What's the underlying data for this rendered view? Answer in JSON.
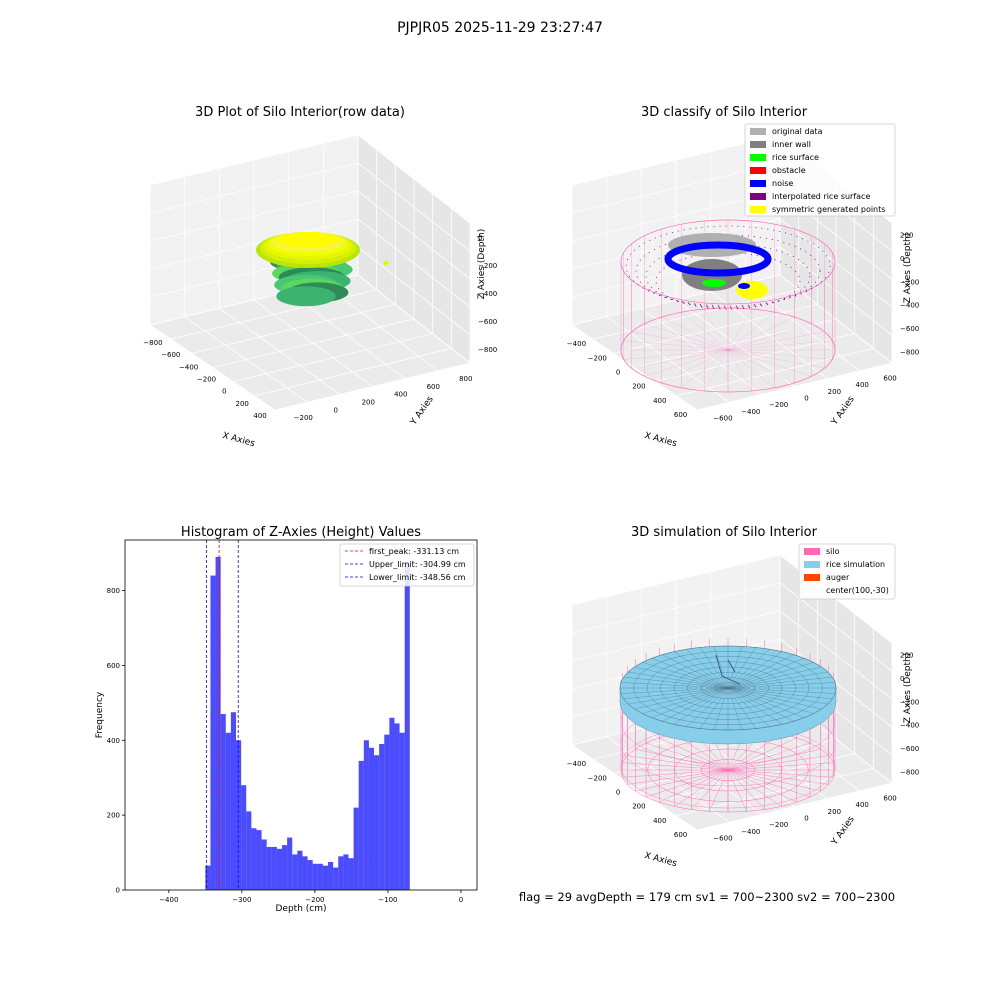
{
  "suptitle": "PJPJR05 2025-11-29 23:27:47",
  "footer": "flag = 29  avgDepth = 179 cm  sv1 = 700~2300  sv2 = 700~2300",
  "colors": {
    "silo": "#ff69b4",
    "rice_simulation": "#87ceeb",
    "auger": "#ff4500",
    "histogram": "#0000ff",
    "first_peak": "#ff0000",
    "limits": "#0000ff"
  },
  "chart_data": [
    {
      "type": "scatter",
      "projection": "3d",
      "title": "3D Plot of Silo Interior(row data)",
      "xlabel": "X Axies",
      "ylabel": "Y Axies",
      "zlabel": "Z Axies (Depth)",
      "x_ticks": [
        "−800",
        "−600",
        "−400",
        "−200",
        "0",
        "200",
        "400"
      ],
      "y_ticks": [
        "−200",
        "0",
        "200",
        "400",
        "600",
        "800"
      ],
      "z_ticks": [
        "0",
        "−200",
        "−400",
        "−600",
        "−800"
      ],
      "colormap": "viridis-like (green to yellow by depth)"
    },
    {
      "type": "scatter",
      "projection": "3d",
      "title": "3D classify of Silo Interior",
      "xlabel": "X Axies",
      "ylabel": "Y Axies",
      "zlabel": "Z Axies (Depth)",
      "x_ticks": [
        "−400",
        "−200",
        "0",
        "200",
        "400",
        "600"
      ],
      "y_ticks": [
        "−600",
        "−400",
        "−200",
        "0",
        "200",
        "400",
        "600"
      ],
      "z_ticks": [
        "200",
        "0",
        "−200",
        "−400",
        "−600",
        "−800"
      ],
      "legend_position": "top-right",
      "legend": [
        {
          "label": "original data",
          "color": "#b0b0b0"
        },
        {
          "label": "inner wall",
          "color": "#808080"
        },
        {
          "label": "rice surface",
          "color": "#00ff00"
        },
        {
          "label": "obstacle",
          "color": "#ff0000"
        },
        {
          "label": "noise",
          "color": "#0000ff"
        },
        {
          "label": "interpolated rice surface",
          "color": "#800080"
        },
        {
          "label": "symmetric generated points",
          "color": "#ffff00"
        }
      ]
    },
    {
      "type": "bar",
      "title": "Histogram of Z-Axies (Height) Values",
      "xlabel": "Depth (cm)",
      "ylabel": "Frequency",
      "xlim": [
        -460,
        22
      ],
      "ylim": [
        0,
        935
      ],
      "x_ticks": [
        -400,
        -300,
        -200,
        -100,
        0
      ],
      "x_tick_labels": [
        "−400",
        "−300",
        "−200",
        "−100",
        "0"
      ],
      "y_ticks": [
        0,
        200,
        400,
        600,
        800
      ],
      "bin_start": -350,
      "bin_width": 7,
      "values": [
        65,
        840,
        890,
        470,
        420,
        475,
        400,
        280,
        210,
        165,
        160,
        135,
        115,
        115,
        110,
        120,
        140,
        95,
        105,
        90,
        80,
        70,
        70,
        65,
        75,
        60,
        90,
        95,
        85,
        220,
        345,
        400,
        380,
        360,
        390,
        415,
        460,
        445,
        420,
        875
      ],
      "lines": [
        {
          "label": "first_peak: -331.13 cm",
          "x": -331.13,
          "color": "#ff0000"
        },
        {
          "label": "Upper_limit: -304.99 cm",
          "x": -304.99,
          "color": "#0000ff"
        },
        {
          "label": "Lower_limit: -348.56 cm",
          "x": -348.56,
          "color": "#0000ff"
        }
      ],
      "legend_position": "top-right"
    },
    {
      "type": "surface",
      "projection": "3d",
      "title": "3D simulation of Silo Interior",
      "xlabel": "X Axies",
      "ylabel": "Y Axies",
      "zlabel": "Z Axies (Depth)",
      "x_ticks": [
        "−400",
        "−200",
        "0",
        "200",
        "400",
        "600"
      ],
      "y_ticks": [
        "−600",
        "−400",
        "−200",
        "0",
        "200",
        "400",
        "600"
      ],
      "z_ticks": [
        "200",
        "0",
        "−200",
        "−400",
        "−600",
        "−800"
      ],
      "legend_position": "top-right",
      "legend": [
        {
          "label": "silo",
          "color": "#ff69b4"
        },
        {
          "label": "rice simulation",
          "color": "#87ceeb"
        },
        {
          "label": "auger",
          "color": "#ff4500"
        },
        {
          "label": "center(100,-30)",
          "color": ""
        }
      ]
    }
  ]
}
